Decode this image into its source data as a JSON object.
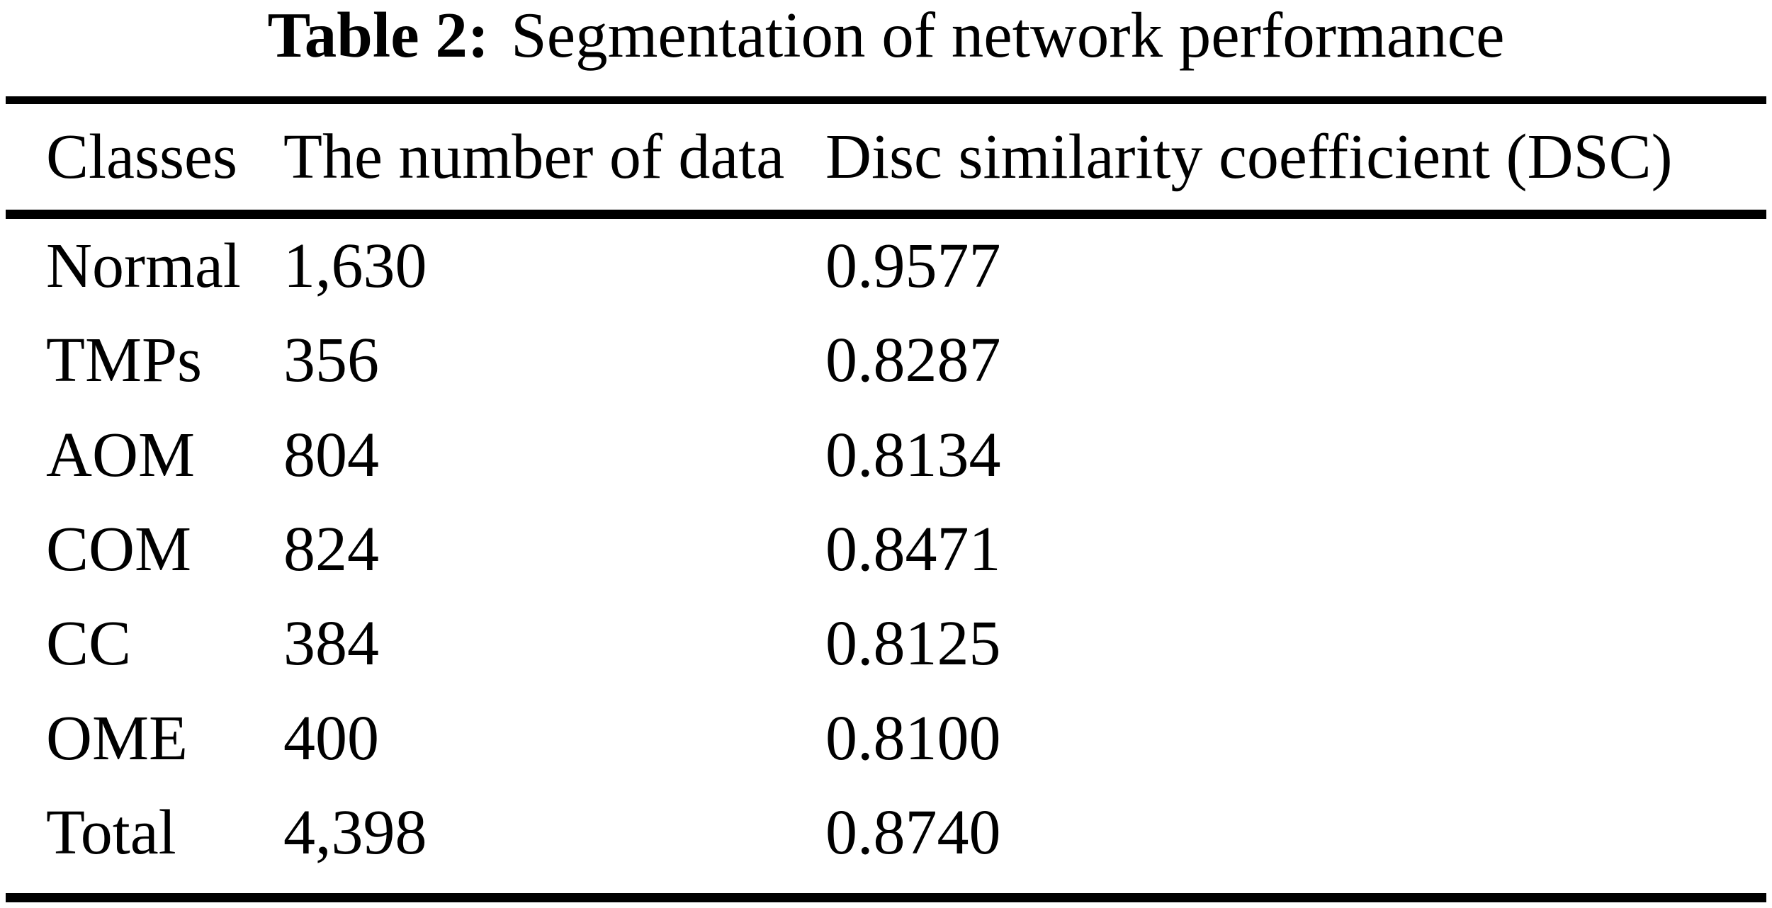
{
  "caption": {
    "label": "Table 2:",
    "text": "Segmentation of network performance"
  },
  "table": {
    "columns": {
      "classes": "Classes",
      "count": "The number of data",
      "dsc": "Disc similarity coefficient (DSC)"
    },
    "rows": [
      {
        "class": "Normal",
        "count": "1,630",
        "dsc": "0.9577"
      },
      {
        "class": "TMPs",
        "count": "356",
        "dsc": "0.8287"
      },
      {
        "class": "AOM",
        "count": "804",
        "dsc": "0.8134"
      },
      {
        "class": "COM",
        "count": "824",
        "dsc": "0.8471"
      },
      {
        "class": "CC",
        "count": "384",
        "dsc": "0.8125"
      },
      {
        "class": "OME",
        "count": "400",
        "dsc": "0.8100"
      },
      {
        "class": "Total",
        "count": "4,398",
        "dsc": "0.8740"
      }
    ]
  },
  "colors": {
    "text": "#000000",
    "background": "#ffffff",
    "rule": "#000000"
  }
}
